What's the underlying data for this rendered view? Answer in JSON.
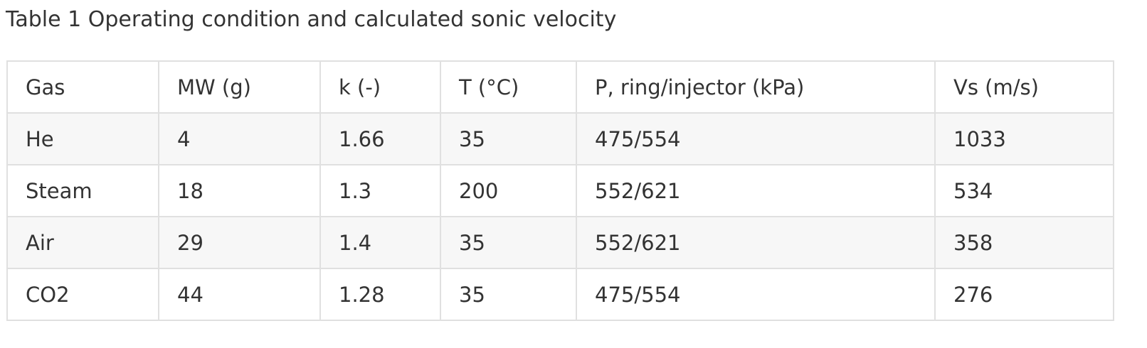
{
  "title": "Table 1 Operating condition and calculated sonic velocity",
  "table": {
    "header": [
      "Gas",
      "MW (g)",
      "k (-)",
      "T (°C)",
      "P, ring/injector (kPa)",
      "Vs (m/s)"
    ],
    "rows": [
      [
        "He",
        4,
        1.66,
        35,
        "475/554",
        1033
      ],
      [
        "Steam",
        18,
        1.3,
        200,
        "552/621",
        534
      ],
      [
        "Air",
        29,
        1.4,
        35,
        "552/621",
        358
      ],
      [
        "CO2",
        44,
        1.28,
        35,
        "475/554",
        276
      ]
    ]
  }
}
